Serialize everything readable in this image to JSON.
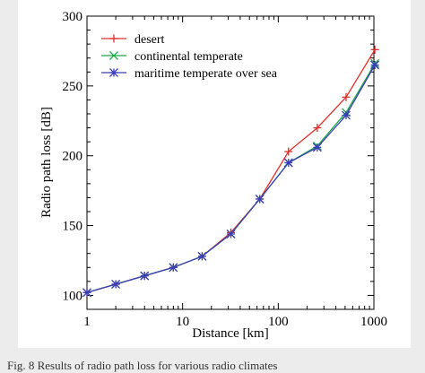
{
  "chart_data": {
    "type": "line",
    "xlabel": "Distance [km]",
    "ylabel": "Radio path loss [dB]",
    "xscale": "log",
    "xlim": [
      1,
      1000
    ],
    "ylim": [
      90,
      300
    ],
    "x_ticks": [
      1,
      10,
      100,
      1000
    ],
    "y_ticks": [
      100,
      150,
      200,
      250,
      300
    ],
    "legend_position": "top-left",
    "grid": false,
    "x": [
      1,
      2,
      4,
      8,
      16,
      32,
      64,
      128,
      256,
      512,
      1024
    ],
    "series": [
      {
        "name": "desert",
        "color": "#e0302a",
        "marker": "plus",
        "values": [
          102,
          108,
          114,
          120,
          128,
          145,
          169,
          203,
          220,
          242,
          276
        ]
      },
      {
        "name": "continental temperate",
        "color": "#1ea84a",
        "marker": "cross",
        "values": [
          102,
          108,
          114,
          120,
          128,
          144,
          169,
          195,
          207,
          231,
          266
        ]
      },
      {
        "name": "maritime temperate over sea",
        "color": "#3a3fb8",
        "marker": "star",
        "values": [
          102,
          108,
          114,
          120,
          128,
          144,
          169,
          195,
          206,
          229,
          265
        ]
      }
    ]
  },
  "caption": "Fig. 8   Results of radio path loss for various radio climates"
}
